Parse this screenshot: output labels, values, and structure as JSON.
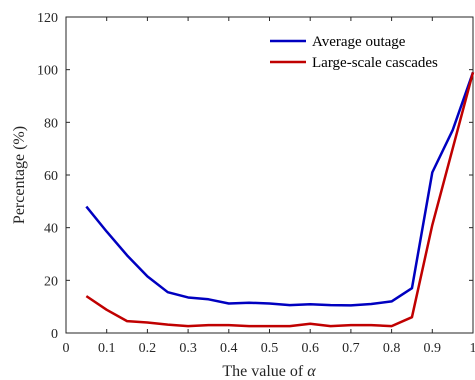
{
  "chart_data": {
    "type": "line",
    "xlabel": "The value of ",
    "xlabel_symbol": "α",
    "ylabel": "Percentage (%)",
    "xlim": [
      0,
      1
    ],
    "ylim": [
      0,
      120
    ],
    "xticks": [
      0,
      0.1,
      0.2,
      0.3,
      0.4,
      0.5,
      0.6,
      0.7,
      0.8,
      0.9,
      1
    ],
    "xtick_labels": [
      "0",
      "0.1",
      "0.2",
      "0.3",
      "0.4",
      "0.5",
      "0.6",
      "0.7",
      "0.8",
      "0.9",
      "1"
    ],
    "yticks": [
      0,
      20,
      40,
      60,
      80,
      100,
      120
    ],
    "ytick_labels": [
      "0",
      "20",
      "40",
      "60",
      "80",
      "100",
      "120"
    ],
    "grid": false,
    "legend_position": "top-right",
    "x": [
      0.05,
      0.1,
      0.15,
      0.2,
      0.25,
      0.3,
      0.35,
      0.4,
      0.45,
      0.5,
      0.55,
      0.6,
      0.65,
      0.7,
      0.75,
      0.8,
      0.85,
      0.9,
      0.95,
      1.0
    ],
    "series": [
      {
        "name": "Average outage",
        "color": "#0000c0",
        "values": [
          48,
          38.5,
          29.5,
          21.5,
          15.5,
          13.5,
          12.8,
          11.2,
          11.5,
          11.2,
          10.6,
          10.9,
          10.6,
          10.5,
          11.0,
          12.0,
          17.0,
          61.0,
          77.0,
          99.0
        ]
      },
      {
        "name": "Large-scale cascades",
        "color": "#c00000",
        "values": [
          14,
          8.8,
          4.5,
          4.0,
          3.2,
          2.6,
          3.0,
          3.0,
          2.6,
          2.6,
          2.6,
          3.5,
          2.6,
          3.0,
          3.0,
          2.6,
          6.0,
          41.0,
          70.0,
          99.0
        ]
      }
    ]
  }
}
